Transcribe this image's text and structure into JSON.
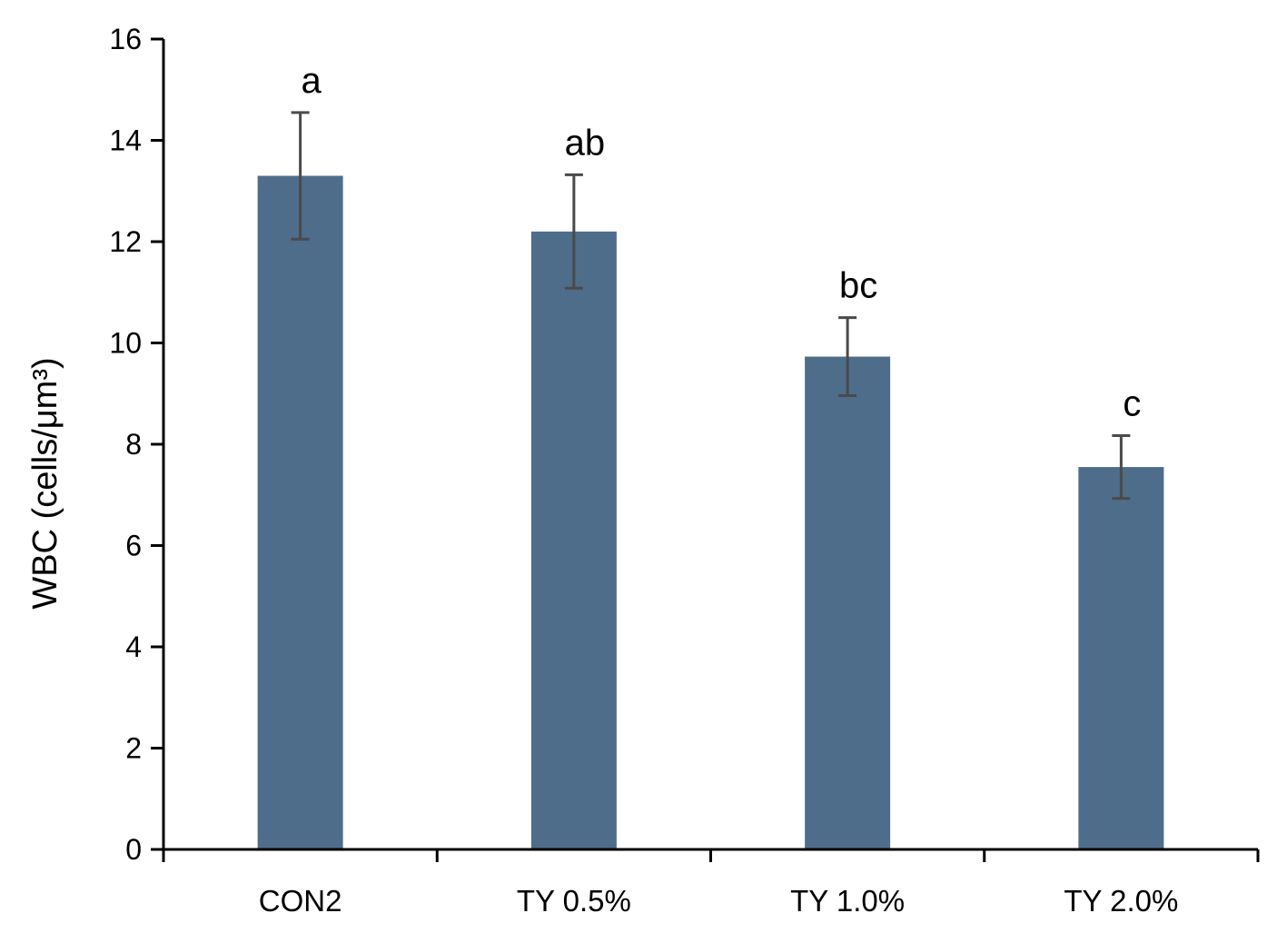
{
  "chart_data": {
    "type": "bar",
    "title": "",
    "xlabel": "",
    "ylabel": "WBC (cells/μm³)",
    "categories": [
      "CON2",
      "TY 0.5%",
      "TY 1.0%",
      "TY 2.0%"
    ],
    "values": [
      13.3,
      12.2,
      9.73,
      7.55
    ],
    "error": [
      1.25,
      1.12,
      0.77,
      0.62
    ],
    "significance_letters": [
      "a",
      "ab",
      "bc",
      "c"
    ],
    "ylim": [
      0,
      16
    ],
    "yticks": [
      "0",
      "2",
      "4",
      "6",
      "8",
      "10",
      "12",
      "14",
      "16"
    ],
    "grid": false,
    "legend": "none",
    "colors": {
      "bar": "#4e6d8a",
      "error_bar": "#4a4a4a",
      "axis": "#000000"
    }
  }
}
